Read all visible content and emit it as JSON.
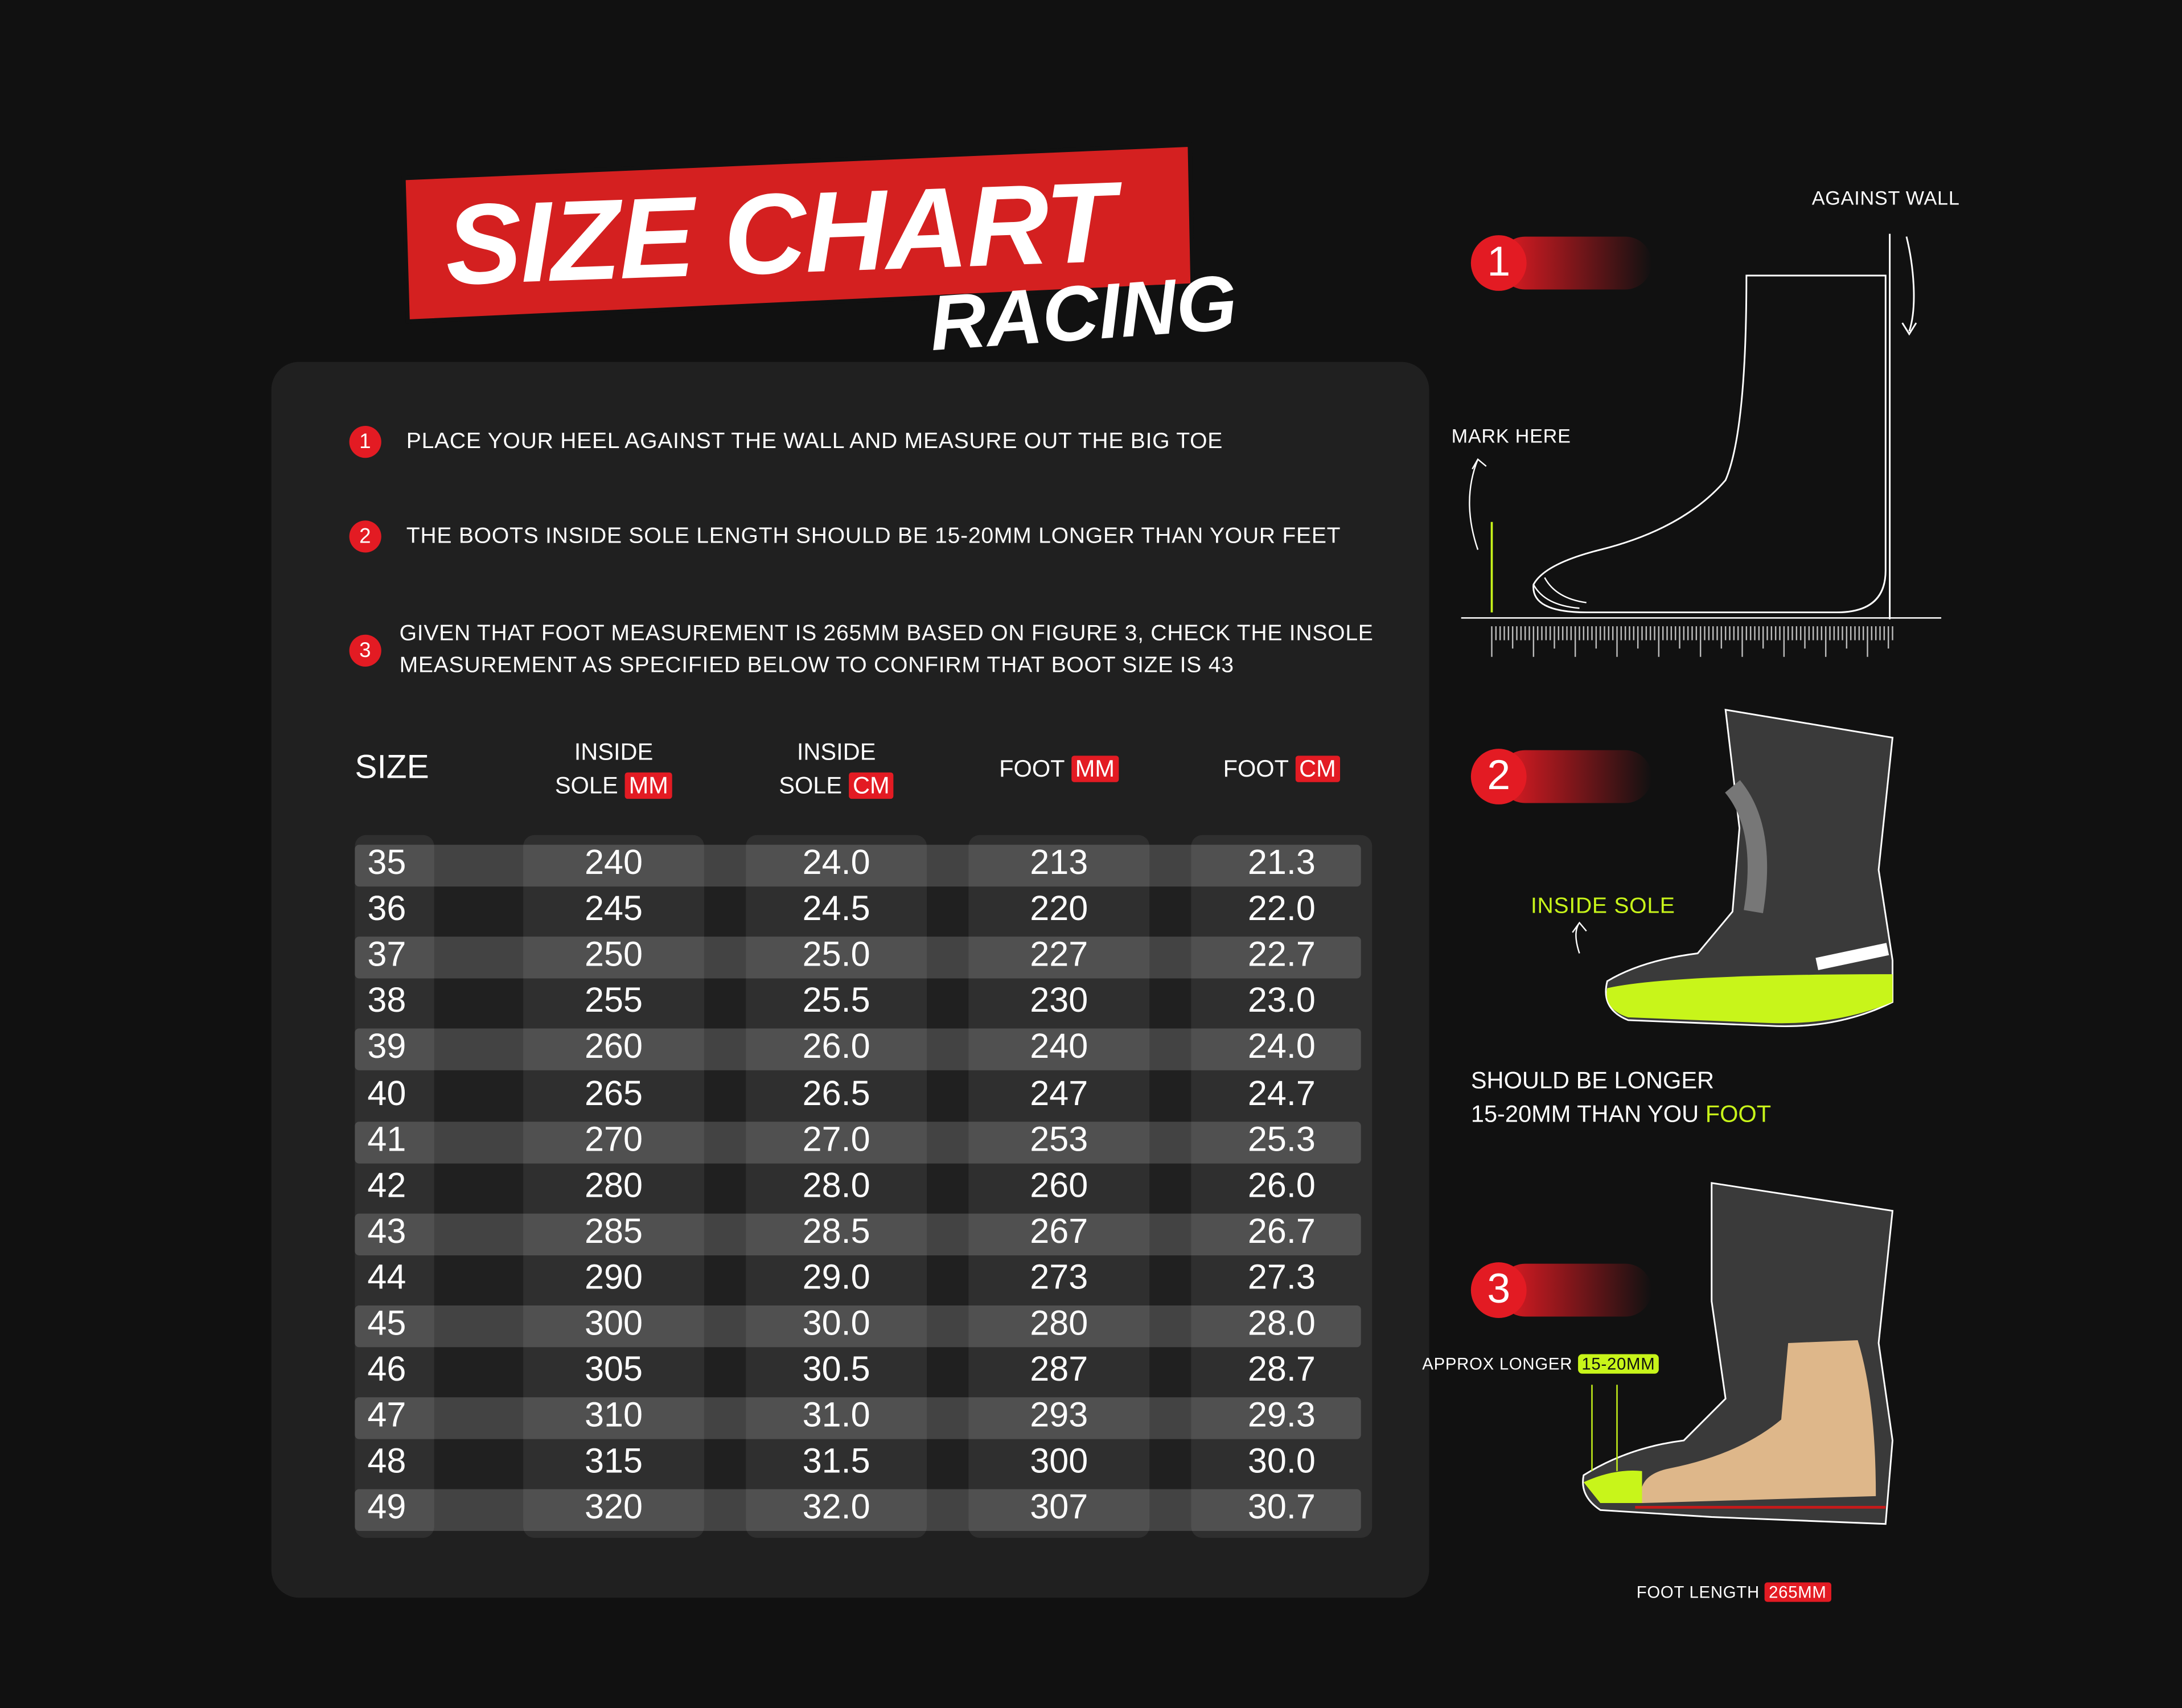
{
  "header": {
    "title": "SIZE CHART",
    "subtitle": "RACING"
  },
  "colors": {
    "accent_red": "#e31b23",
    "highlight_green": "#c8f51a",
    "background": "#111111",
    "panel": "#202020"
  },
  "instructions": [
    {
      "num": "1",
      "text": "PLACE YOUR HEEL AGAINST THE WALL AND MEASURE OUT THE BIG TOE"
    },
    {
      "num": "2",
      "text": "THE BOOTS INSIDE SOLE LENGTH SHOULD BE 15-20MM LONGER THAN YOUR FEET"
    },
    {
      "num": "3",
      "text": "GIVEN THAT FOOT MEASUREMENT IS 265MM BASED ON FIGURE 3, CHECK THE INSOLE MEASUREMENT AS SPECIFIED BELOW TO CONFIRM THAT BOOT SIZE IS 43"
    }
  ],
  "chart_data": {
    "type": "table",
    "columns": [
      {
        "label": "SIZE",
        "unit": ""
      },
      {
        "label": "INSIDE SOLE",
        "unit": "MM"
      },
      {
        "label": "INSIDE SOLE",
        "unit": "CM"
      },
      {
        "label": "FOOT",
        "unit": "MM"
      },
      {
        "label": "FOOT",
        "unit": "CM"
      }
    ],
    "rows": [
      [
        "35",
        "240",
        "24.0",
        "213",
        "21.3"
      ],
      [
        "36",
        "245",
        "24.5",
        "220",
        "22.0"
      ],
      [
        "37",
        "250",
        "25.0",
        "227",
        "22.7"
      ],
      [
        "38",
        "255",
        "25.5",
        "230",
        "23.0"
      ],
      [
        "39",
        "260",
        "26.0",
        "240",
        "24.0"
      ],
      [
        "40",
        "265",
        "26.5",
        "247",
        "24.7"
      ],
      [
        "41",
        "270",
        "27.0",
        "253",
        "25.3"
      ],
      [
        "42",
        "280",
        "28.0",
        "260",
        "26.0"
      ],
      [
        "43",
        "285",
        "28.5",
        "267",
        "26.7"
      ],
      [
        "44",
        "290",
        "29.0",
        "273",
        "27.3"
      ],
      [
        "45",
        "300",
        "30.0",
        "280",
        "28.0"
      ],
      [
        "46",
        "305",
        "30.5",
        "287",
        "28.7"
      ],
      [
        "47",
        "310",
        "31.0",
        "293",
        "29.3"
      ],
      [
        "48",
        "315",
        "31.5",
        "300",
        "30.0"
      ],
      [
        "49",
        "320",
        "32.0",
        "307",
        "30.7"
      ]
    ]
  },
  "figures": {
    "fig1": {
      "num": "1",
      "against_wall": "AGAINST WALL",
      "mark_here": "MARK HERE"
    },
    "fig2": {
      "num": "2",
      "inside_sole": "INSIDE SOLE",
      "note_line1": "SHOULD BE LONGER",
      "note_line2": "15-20MM THAN YOU",
      "note_highlight": "FOOT"
    },
    "fig3": {
      "num": "3",
      "approx_longer": "APPROX LONGER",
      "approx_value": "15-20MM",
      "foot_length": "FOOT LENGTH",
      "foot_value": "265MM"
    }
  }
}
